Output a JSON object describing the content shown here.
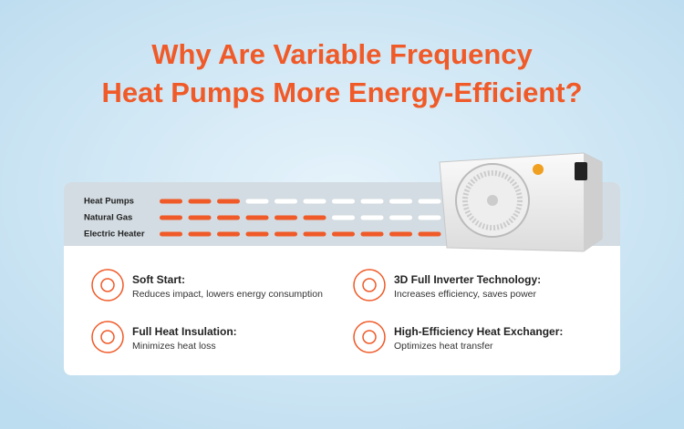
{
  "title_lines": [
    "Why Are Variable Frequency",
    "Heat Pumps More Energy-Efficient?"
  ],
  "comparison": {
    "rows": [
      {
        "label": "Heat Pumps",
        "filled": 3,
        "segments": 10
      },
      {
        "label": "Natural Gas",
        "filled": 6,
        "segments": 10
      },
      {
        "label": "Electric Heater",
        "filled": 10,
        "segments": 10
      }
    ]
  },
  "features": [
    {
      "title": "Soft Start:",
      "description": "Reduces impact, lowers energy consumption"
    },
    {
      "title": "3D Full Inverter Technology:",
      "description": "Increases efficiency, saves power"
    },
    {
      "title": "Full Heat Insulation:",
      "description": "Minimizes heat loss"
    },
    {
      "title": "High-Efficiency Heat Exchanger:",
      "description": "Optimizes heat transfer"
    }
  ]
}
